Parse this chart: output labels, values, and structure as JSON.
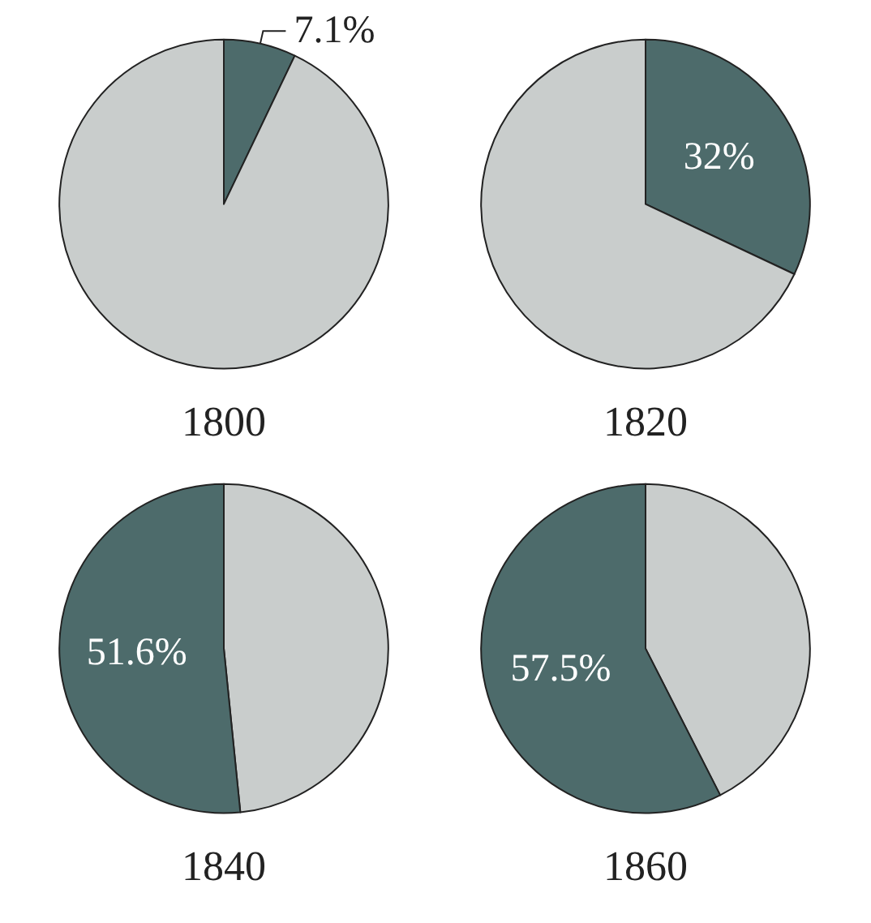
{
  "chart_data": [
    {
      "type": "pie",
      "title": "1800",
      "categories": [
        null,
        null
      ],
      "values": [
        7.1,
        92.9
      ],
      "colors": [
        "#4d6b6b",
        "#c9cdcc"
      ],
      "value_labels": [
        "7.1%",
        null
      ]
    },
    {
      "type": "pie",
      "title": "1820",
      "categories": [
        null,
        null
      ],
      "values": [
        32,
        68
      ],
      "colors": [
        "#4d6b6b",
        "#c9cdcc"
      ],
      "value_labels": [
        "32%",
        null
      ]
    },
    {
      "type": "pie",
      "title": "1840",
      "categories": [
        null,
        null
      ],
      "values": [
        48.4,
        51.6
      ],
      "colors": [
        "#c9cdcc",
        "#4d6b6b"
      ],
      "value_labels": [
        null,
        "51.6%"
      ]
    },
    {
      "type": "pie",
      "title": "1860",
      "categories": [
        null,
        null
      ],
      "values": [
        42.5,
        57.5
      ],
      "colors": [
        "#c9cdcc",
        "#4d6b6b"
      ],
      "value_labels": [
        null,
        "57.5%"
      ]
    }
  ]
}
